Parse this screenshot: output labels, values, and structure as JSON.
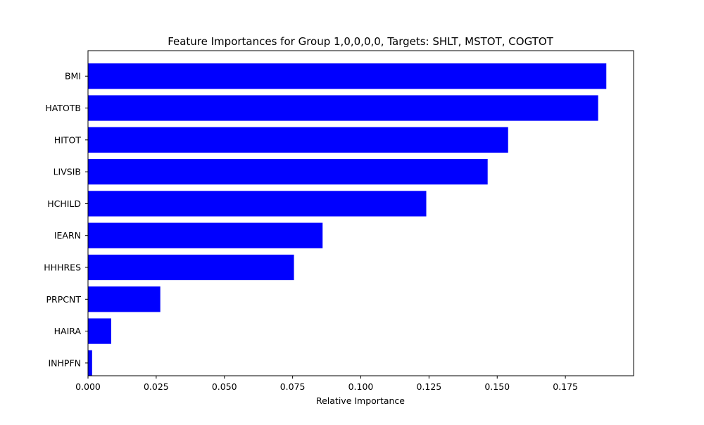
{
  "chart_data": {
    "type": "bar",
    "orientation": "horizontal",
    "title": "Feature Importances for Group 1,0,0,0,0, Targets: SHLT, MSTOT, COGTOT",
    "xlabel": "Relative Importance",
    "ylabel": "",
    "categories": [
      "BMI",
      "HATOTB",
      "HITOT",
      "LIVSIB",
      "HCHILD",
      "IEARN",
      "HHHRES",
      "PRPCNT",
      "HAIRA",
      "INHPFN"
    ],
    "values": [
      0.19,
      0.187,
      0.154,
      0.1465,
      0.124,
      0.086,
      0.0755,
      0.0265,
      0.0085,
      0.0015
    ],
    "xlim": [
      0,
      0.2
    ],
    "xticks": [
      0.0,
      0.025,
      0.05,
      0.075,
      0.1,
      0.125,
      0.15,
      0.175
    ],
    "xtick_labels": [
      "0.000",
      "0.025",
      "0.050",
      "0.075",
      "0.100",
      "0.125",
      "0.150",
      "0.175"
    ],
    "bar_color": "#0000ff",
    "grid": false,
    "legend": "none"
  }
}
